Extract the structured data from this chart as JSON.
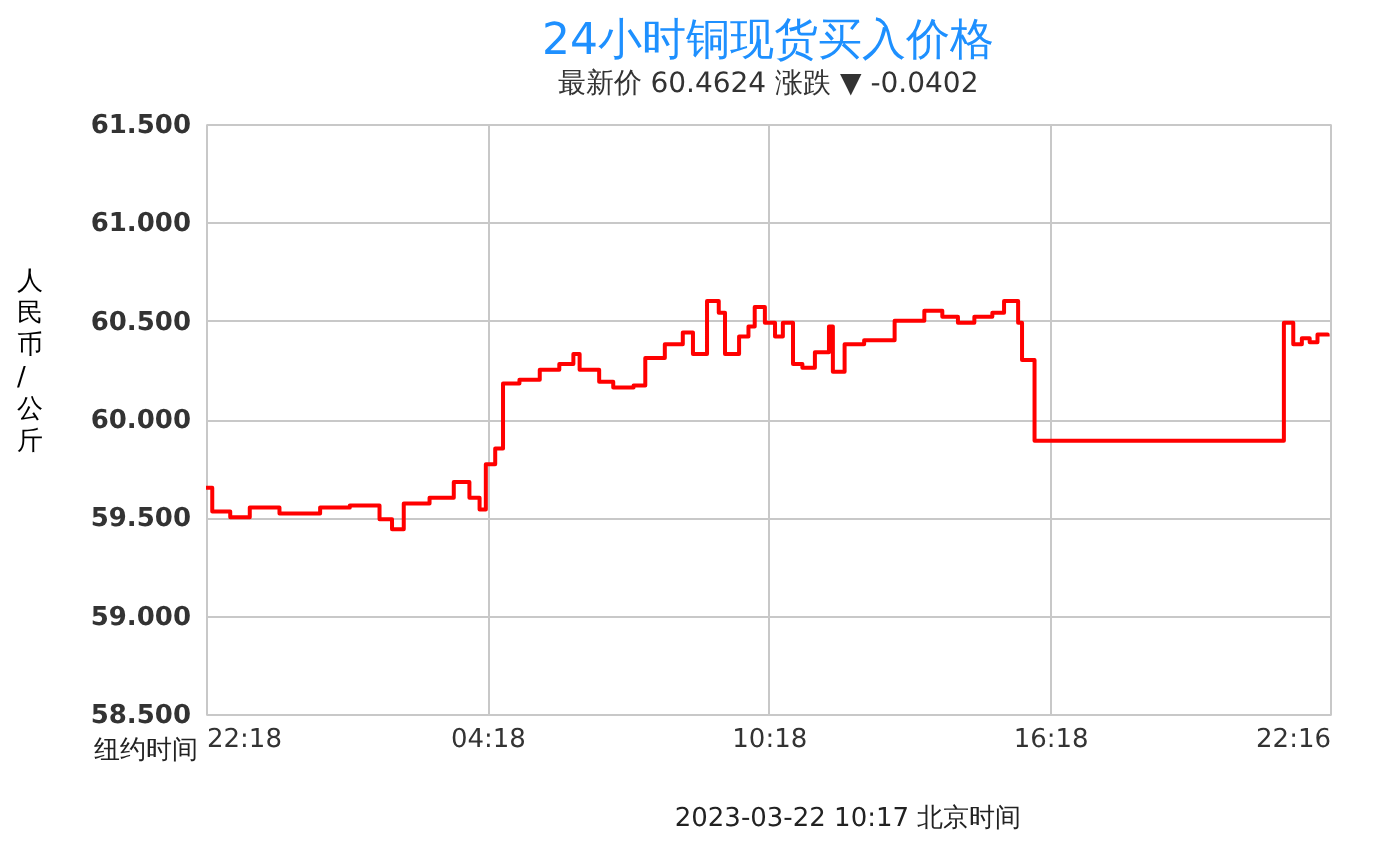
{
  "chart_data": {
    "type": "step",
    "title": "24小时铜现货买入价格",
    "subtitle": "最新价  60.4624    涨跌 ▼ -0.0402",
    "ylabel": "人民币/公斤",
    "annotations": [
      "纽约时间",
      "2023-03-22 10:17   北京时间"
    ],
    "x": [
      "2023-03-20T22:18",
      "2023-03-20T22:26",
      "2023-03-20T22:49",
      "2023-03-20T23:14",
      "2023-03-20T23:52",
      "2023-03-21T00:44",
      "2023-03-21T01:22",
      "2023-03-21T02:00",
      "2023-03-21T02:16",
      "2023-03-21T02:31",
      "2023-03-21T03:04",
      "2023-03-21T03:35",
      "2023-03-21T03:55",
      "2023-03-21T04:08",
      "2023-03-21T04:16",
      "2023-03-21T04:28",
      "2023-03-21T04:38",
      "2023-03-21T04:59",
      "2023-03-21T05:25",
      "2023-03-21T05:50",
      "2023-03-21T06:08",
      "2023-03-21T06:16",
      "2023-03-21T06:41",
      "2023-03-21T06:59",
      "2023-03-21T07:25",
      "2023-03-21T07:40",
      "2023-03-21T08:05",
      "2023-03-21T08:28",
      "2023-03-21T08:41",
      "2023-03-21T08:56",
      "2023-03-21T08:59",
      "2023-03-21T09:14",
      "2023-03-21T09:22",
      "2023-03-21T09:40",
      "2023-03-21T09:52",
      "2023-03-21T10:00",
      "2023-03-21T10:13",
      "2023-03-21T10:26",
      "2023-03-21T10:36",
      "2023-03-21T10:49",
      "2023-03-21T11:01",
      "2023-03-21T11:17",
      "2023-03-21T11:35",
      "2023-03-21T11:40",
      "2023-03-21T11:55",
      "2023-03-21T12:20",
      "2023-03-21T12:59",
      "2023-03-21T13:37",
      "2023-03-21T14:00",
      "2023-03-21T14:20",
      "2023-03-21T14:41",
      "2023-03-21T15:04",
      "2023-03-21T15:19",
      "2023-03-21T15:37",
      "2023-03-21T15:42",
      "2023-03-21T15:58",
      "2023-03-21T21:17",
      "2023-03-21T21:29",
      "2023-03-21T21:40",
      "2023-03-21T21:50",
      "2023-03-21T22:00",
      "2023-03-21T22:13"
    ],
    "series": [
      {
        "color": "#ff0000",
        "values": [
          59.65,
          59.53,
          59.5,
          59.55,
          59.52,
          59.55,
          59.56,
          59.49,
          59.44,
          59.57,
          59.6,
          59.68,
          59.6,
          59.54,
          59.77,
          59.85,
          60.18,
          60.2,
          60.25,
          60.28,
          60.33,
          60.25,
          60.19,
          60.16,
          60.17,
          60.31,
          60.38,
          60.44,
          60.33,
          60.33,
          60.6,
          60.54,
          60.33,
          60.42,
          60.47,
          60.57,
          60.49,
          60.42,
          60.49,
          60.28,
          60.26,
          60.34,
          60.47,
          60.24,
          60.38,
          60.4,
          60.5,
          60.55,
          60.52,
          60.49,
          60.52,
          60.54,
          60.6,
          60.49,
          60.3,
          59.89,
          60.49,
          60.38,
          60.41,
          60.39,
          60.43,
          60.42
        ]
      }
    ],
    "xlim": [
      "2023-03-20T22:18",
      "2023-03-21T22:16"
    ],
    "xticks": [
      {
        "value": "2023-03-20T22:18",
        "label": "22:18"
      },
      {
        "value": "2023-03-21T04:18",
        "label": "04:18"
      },
      {
        "value": "2023-03-21T10:18",
        "label": "10:18"
      },
      {
        "value": "2023-03-21T16:18",
        "label": "16:18"
      },
      {
        "value": "2023-03-21T22:16",
        "label": "22:16"
      }
    ],
    "ylim": [
      58.5,
      61.5
    ],
    "yticks": [
      {
        "value": 58.5,
        "label": "58.500"
      },
      {
        "value": 59.0,
        "label": "59.000"
      },
      {
        "value": 59.5,
        "label": "59.500"
      },
      {
        "value": 60.0,
        "label": "60.000"
      },
      {
        "value": 60.5,
        "label": "60.500"
      },
      {
        "value": 61.0,
        "label": "61.000"
      },
      {
        "value": 61.5,
        "label": "61.500"
      }
    ],
    "grid": true,
    "legend": false,
    "marker": "none",
    "line_style": "solid"
  }
}
